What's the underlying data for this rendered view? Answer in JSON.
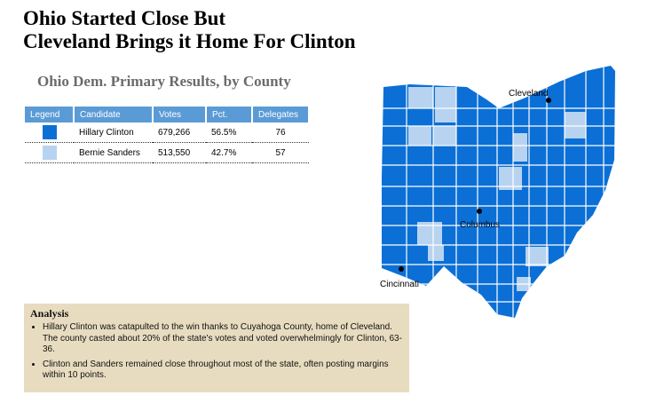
{
  "header": {
    "title_lines": [
      "Ohio Started Close But",
      "Cleveland Brings it Home For Clinton"
    ],
    "subtitle": "Ohio Dem. Primary Results, by County"
  },
  "table": {
    "columns": [
      "Legend",
      "Candidate",
      "Votes",
      "Pct.",
      "Delegates"
    ],
    "rows": [
      {
        "color": "#0b6fd6",
        "cells": [
          "Hillary Clinton",
          "679,266",
          "56.5%",
          "76"
        ]
      },
      {
        "color": "#b7d3f0",
        "cells": [
          "Bernie Sanders",
          "513,550",
          "42.7%",
          "57"
        ]
      }
    ]
  },
  "analysis": {
    "title": "Analysis",
    "bullets": [
      "Hillary Clinton was catapulted to the win thanks to Cuyahoga County, home of Cleveland. The county casted about 20% of the state's votes and voted overwhelmingly for Clinton, 63-36.",
      "Clinton and Sanders remained close throughout most of the state, often posting margins within 10 points."
    ]
  },
  "map": {
    "cities": [
      "Cleveland",
      "Columbus",
      "Cincinnati"
    ]
  }
}
